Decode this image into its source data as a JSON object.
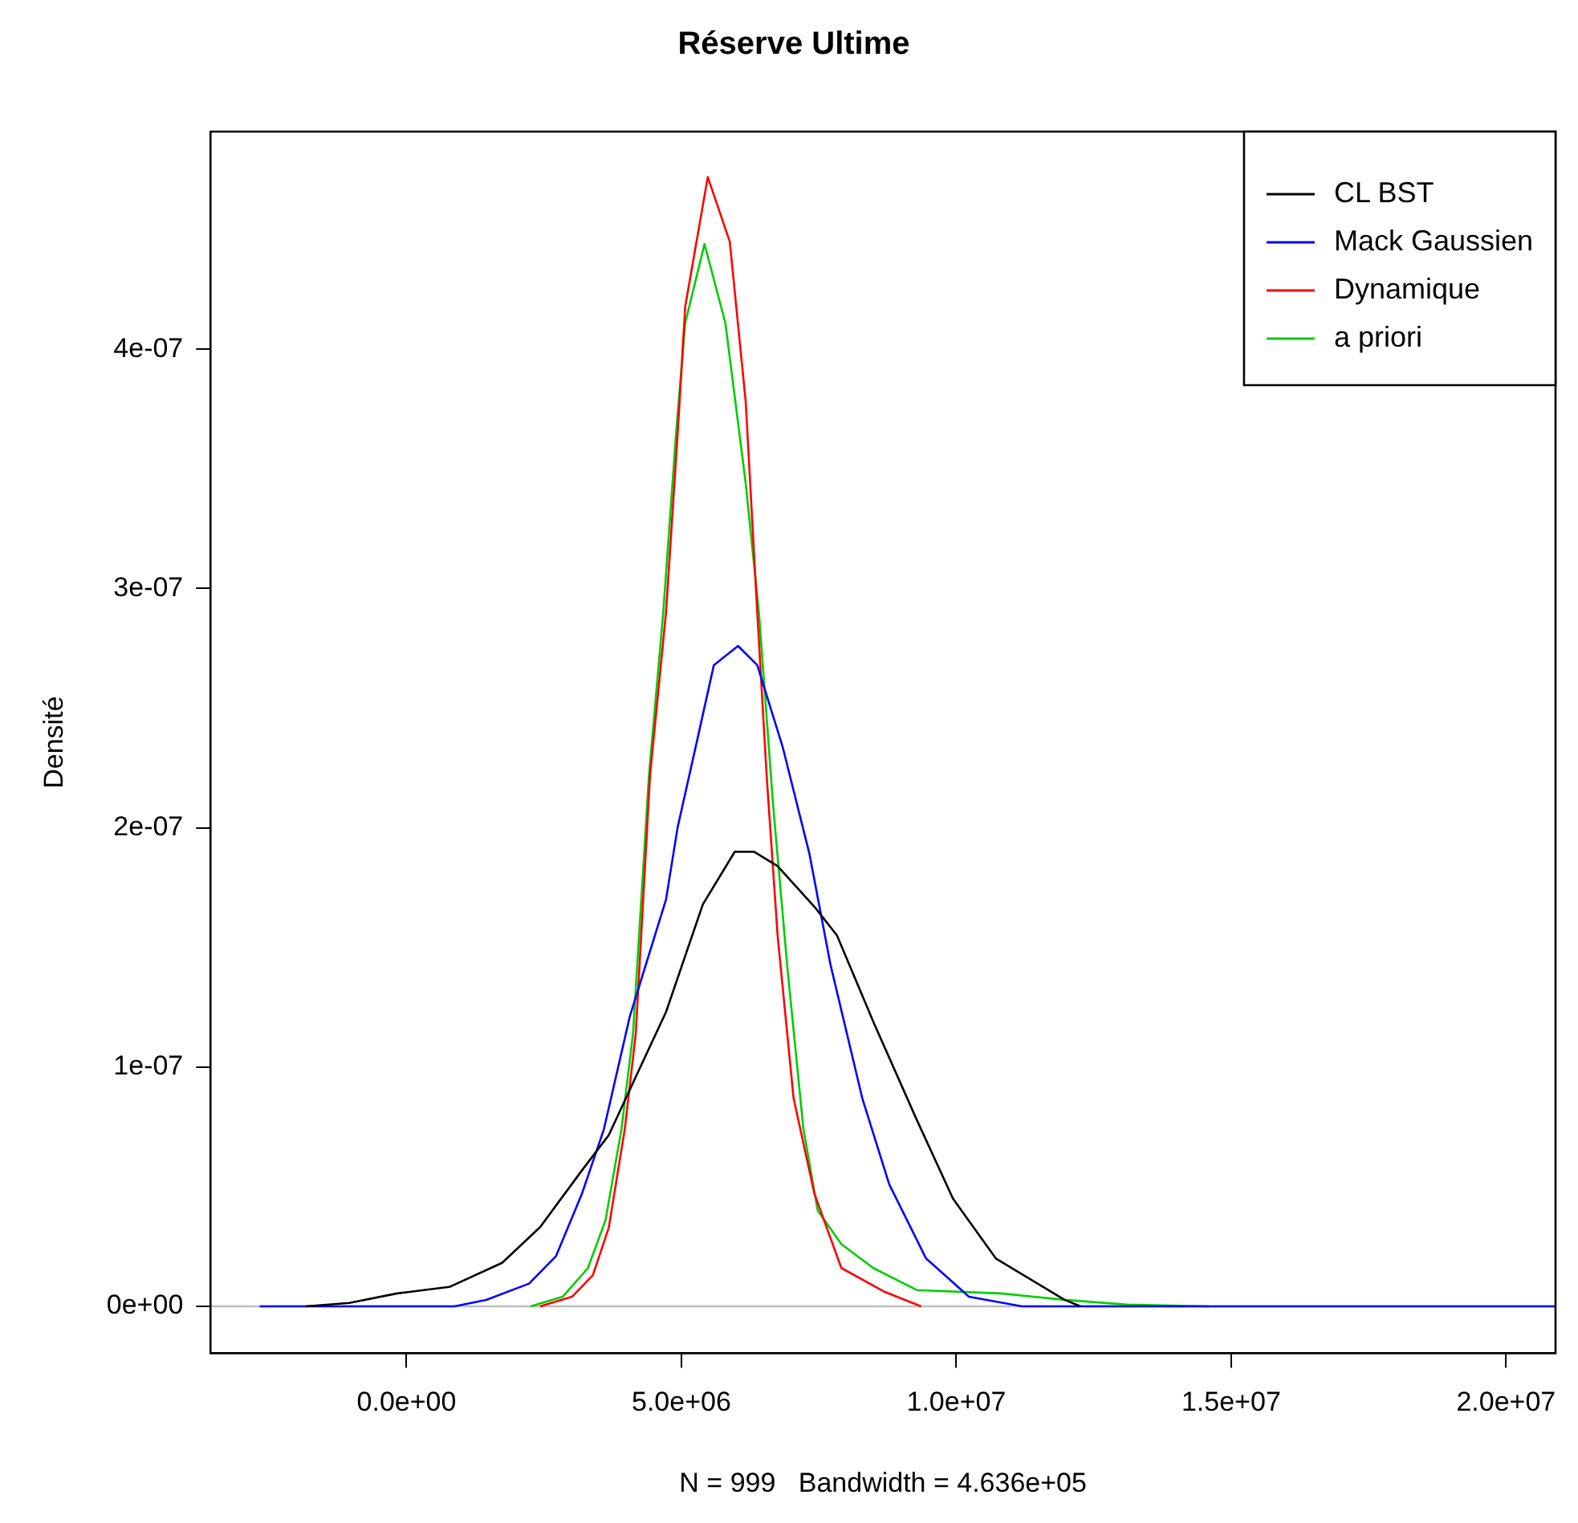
{
  "chart_data": {
    "type": "line",
    "title": "Réserve Ultime",
    "xlabel": "N = 999   Bandwidth = 4.636e+05",
    "ylabel": "Densité",
    "xlim": [
      -3565000,
      20900000
    ],
    "ylim": [
      -1.96e-08,
      4.91e-07
    ],
    "xticks": [
      {
        "value": 0,
        "label": "0.0e+00"
      },
      {
        "value": 5000000,
        "label": "5.0e+06"
      },
      {
        "value": 10000000,
        "label": "1.0e+07"
      },
      {
        "value": 15000000,
        "label": "1.5e+07"
      },
      {
        "value": 20000000,
        "label": "2.0e+07"
      }
    ],
    "yticks": [
      {
        "value": 0,
        "label": "0e+00"
      },
      {
        "value": 1e-07,
        "label": "1e-07"
      },
      {
        "value": 2e-07,
        "label": "2e-07"
      },
      {
        "value": 3e-07,
        "label": "3e-07"
      },
      {
        "value": 4e-07,
        "label": "4e-07"
      }
    ],
    "grid": false,
    "legend": "top right",
    "marker": "none",
    "line_style": "solid",
    "ref_lines": [
      {
        "axis": "y",
        "value": 0,
        "label": null,
        "color": "#bebebe"
      }
    ],
    "series": [
      {
        "name": "CL BST",
        "color": "#000000",
        "x": [
          -1830000,
          -1040000,
          -170000,
          780000,
          1740000,
          2430000,
          3190000,
          3680000,
          4170000,
          4720000,
          5390000,
          5970000,
          6320000,
          6750000,
          7420000,
          7830000,
          8490000,
          9280000,
          9940000,
          10720000,
          11970000,
          12260000
        ],
        "values": [
          0,
          1.4e-09,
          5.4e-09,
          8.1e-09,
          1.82e-08,
          3.31e-08,
          5.68e-08,
          7.16e-08,
          9.59e-08,
          1.23e-07,
          1.68e-07,
          1.9e-07,
          1.9e-07,
          1.84e-07,
          1.67e-07,
          1.55e-07,
          1.19e-07,
          7.8e-08,
          4.5e-08,
          2e-08,
          2.7e-09,
          0
        ]
      },
      {
        "name": "Mack Gaussien",
        "color": "#0000ff",
        "x": [
          -2670000,
          870000,
          1450000,
          2230000,
          2720000,
          3190000,
          3590000,
          4060000,
          4720000,
          4930000,
          5300000,
          5590000,
          6030000,
          6380000,
          6840000,
          7330000,
          7710000,
          8290000,
          8780000,
          9450000,
          10230000,
          11190000,
          20900000
        ],
        "values": [
          0,
          0,
          2.7e-09,
          9.5e-09,
          2.1e-08,
          4.7e-08,
          7.4e-08,
          1.21e-07,
          1.7e-07,
          2e-07,
          2.38e-07,
          2.68e-07,
          2.76e-07,
          2.68e-07,
          2.34e-07,
          1.89e-07,
          1.43e-07,
          8.7e-08,
          5.1e-08,
          2e-08,
          4e-09,
          0,
          0
        ]
      },
      {
        "name": "Dynamique",
        "color": "#ff0000",
        "x": [
          2430000,
          3010000,
          3390000,
          3680000,
          3970000,
          4170000,
          4430000,
          4720000,
          4930000,
          5070000,
          5480000,
          5880000,
          6170000,
          6380000,
          6550000,
          6750000,
          7040000,
          7420000,
          7910000,
          8700000,
          9360000
        ],
        "values": [
          0,
          4e-09,
          1.3e-08,
          3.3e-08,
          7.4e-08,
          1.14e-07,
          2.22e-07,
          2.9e-07,
          3.64e-07,
          4.18e-07,
          4.72e-07,
          4.45e-07,
          3.78e-07,
          2.9e-07,
          2.22e-07,
          1.55e-07,
          8.7e-08,
          4.7e-08,
          1.6e-08,
          6e-09,
          0
        ]
      },
      {
        "name": "a priori",
        "color": "#00cd00",
        "x": [
          2260000,
          2840000,
          3300000,
          3620000,
          3910000,
          4120000,
          4410000,
          4670000,
          4900000,
          5070000,
          5420000,
          5800000,
          6170000,
          6410000,
          6670000,
          6930000,
          7220000,
          7480000,
          7910000,
          8490000,
          9280000,
          10810000,
          11970000,
          13100000,
          14600000
        ],
        "values": [
          0,
          4e-09,
          1.6e-08,
          3.6e-08,
          7.4e-08,
          1.14e-07,
          2.22e-07,
          2.9e-07,
          3.64e-07,
          4.11e-07,
          4.44e-07,
          4.11e-07,
          3.44e-07,
          2.9e-07,
          2.09e-07,
          1.41e-07,
          7.4e-08,
          4e-08,
          2.6e-08,
          1.6e-08,
          6.8e-09,
          5.4e-09,
          2.7e-09,
          7e-10,
          0
        ]
      }
    ]
  }
}
